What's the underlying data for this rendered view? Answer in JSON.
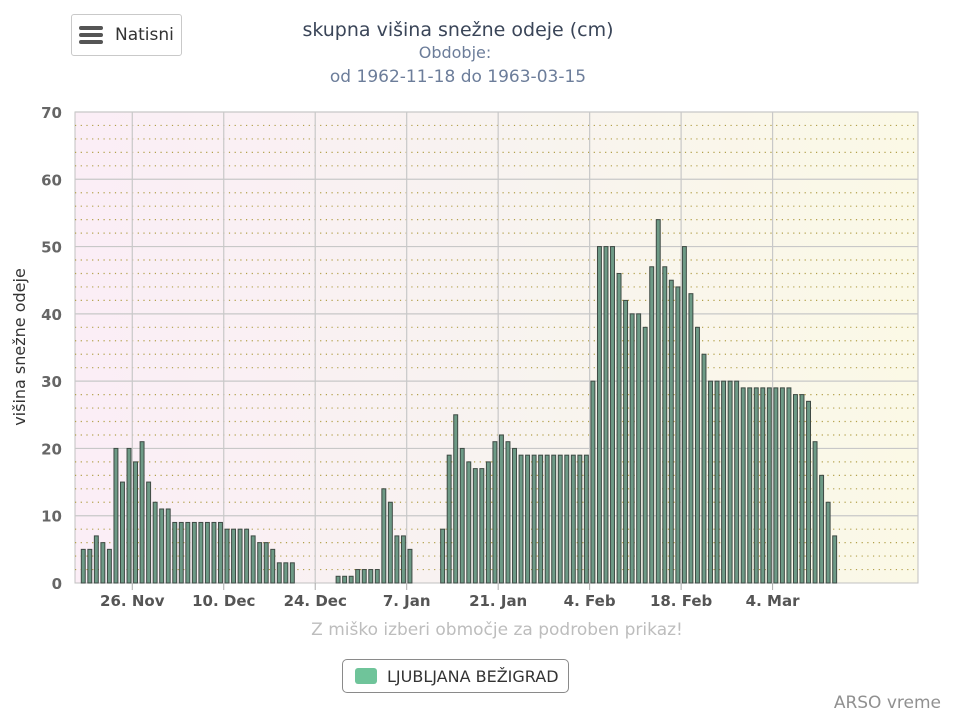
{
  "menu": {
    "label": "Natisni",
    "icon": "hamburger-icon"
  },
  "credits": "ARSO vreme",
  "colors": {
    "bar_fill": "#6d9a86",
    "bar_stroke": "#3e4a44",
    "legend_swatch": "#6fc49a",
    "grid": "#c8c8c8",
    "dotted_grid": "#b2a04a"
  },
  "chart_data": {
    "type": "bar",
    "title": "skupna višina snežne odeje (cm)",
    "subtitle_line1": "Obdobje:",
    "subtitle_line2": "od 1962-11-18 do 1963-03-15",
    "ylabel": "višina snežne odeje",
    "hint": "Z miško izberi območje za podroben prikaz!",
    "ylim": [
      0,
      70
    ],
    "yticks": [
      0,
      10,
      20,
      30,
      40,
      50,
      60,
      70
    ],
    "xstart": "1962-11-18",
    "xend": "1963-03-15",
    "xticks": [
      {
        "date": "1962-11-26",
        "label": "26. Nov"
      },
      {
        "date": "1962-12-10",
        "label": "10. Dec"
      },
      {
        "date": "1962-12-24",
        "label": "24. Dec"
      },
      {
        "date": "1963-01-07",
        "label": "7. Jan"
      },
      {
        "date": "1963-01-21",
        "label": "21. Jan"
      },
      {
        "date": "1963-02-04",
        "label": "4. Feb"
      },
      {
        "date": "1963-02-18",
        "label": "18. Feb"
      },
      {
        "date": "1963-03-04",
        "label": "4. Mar"
      }
    ],
    "grid": true,
    "legend_position": "bottom-center",
    "series": [
      {
        "name": "LJUBLJANA BEŽIGRAD",
        "values": [
          5,
          5,
          7,
          6,
          5,
          20,
          15,
          20,
          18,
          21,
          15,
          12,
          11,
          11,
          9,
          9,
          9,
          9,
          9,
          9,
          9,
          9,
          8,
          8,
          8,
          8,
          7,
          6,
          6,
          5,
          3,
          3,
          3,
          null,
          null,
          null,
          null,
          null,
          null,
          1,
          1,
          1,
          2,
          2,
          2,
          2,
          14,
          12,
          7,
          7,
          5,
          null,
          null,
          null,
          null,
          8,
          19,
          25,
          20,
          18,
          17,
          17,
          18,
          21,
          22,
          21,
          20,
          19,
          19,
          19,
          19,
          19,
          19,
          19,
          19,
          19,
          19,
          19,
          30,
          50,
          50,
          50,
          46,
          42,
          40,
          40,
          38,
          47,
          54,
          47,
          45,
          44,
          50,
          43,
          38,
          34,
          30,
          30,
          30,
          30,
          30,
          29,
          29,
          29,
          29,
          29,
          29,
          29,
          29,
          28,
          28,
          27,
          21,
          16,
          12,
          7
        ]
      }
    ]
  }
}
